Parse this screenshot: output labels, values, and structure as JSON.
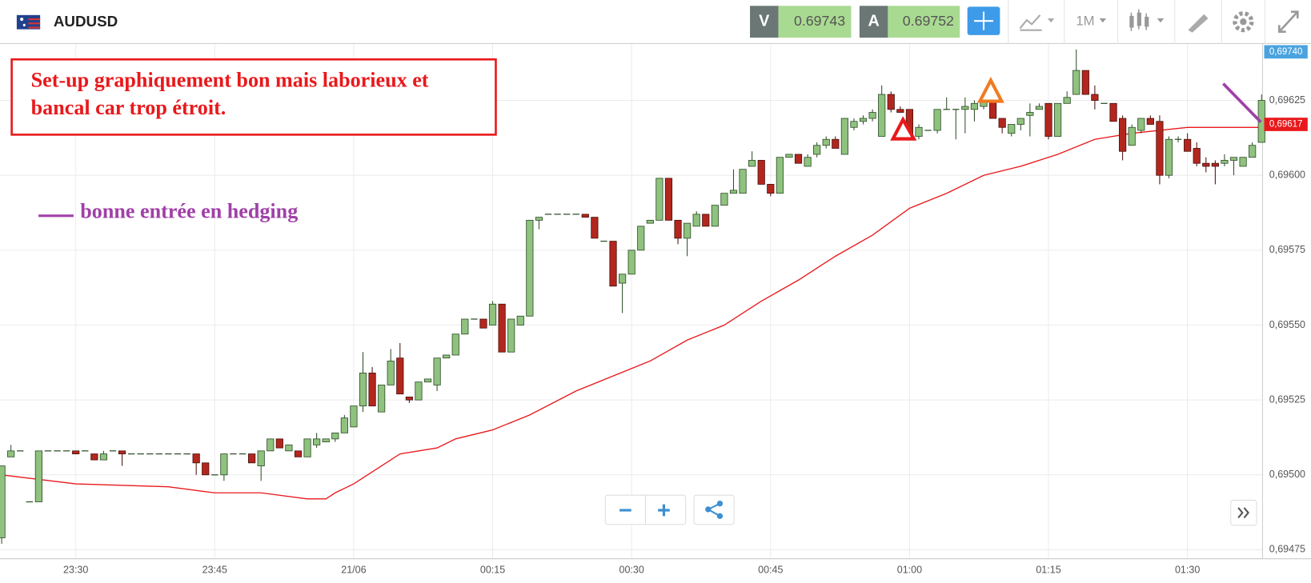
{
  "header": {
    "symbol": "AUDUSD",
    "sell_label": "V",
    "sell_price": "0.69743",
    "buy_label": "A",
    "buy_price": "0.69752",
    "timeframe": "1M"
  },
  "chart_data": {
    "type": "candlestick",
    "x": [
      "23:22",
      "23:23",
      "23:24",
      "23:25",
      "23:26",
      "23:27",
      "23:28",
      "23:29",
      "23:30",
      "23:31",
      "23:32",
      "23:33",
      "23:34",
      "23:35",
      "23:36",
      "23:37",
      "23:38",
      "23:39",
      "23:40",
      "23:41",
      "23:42",
      "23:43",
      "23:44",
      "23:45",
      "23:46",
      "23:47",
      "23:48",
      "23:49",
      "23:50",
      "23:51",
      "23:52",
      "23:53",
      "23:54",
      "23:55",
      "23:56",
      "23:57",
      "23:58",
      "23:59",
      "00:00",
      "00:01",
      "00:02",
      "00:03",
      "00:04",
      "00:05",
      "00:06",
      "00:07",
      "00:08",
      "00:09",
      "00:10",
      "00:11",
      "00:12",
      "00:13",
      "00:14",
      "00:15",
      "00:16",
      "00:17",
      "00:18",
      "00:19",
      "00:20",
      "00:21",
      "00:22",
      "00:23",
      "00:24",
      "00:25",
      "00:26",
      "00:27",
      "00:28",
      "00:29",
      "00:30",
      "00:31",
      "00:32",
      "00:33",
      "00:34",
      "00:35",
      "00:36",
      "00:37",
      "00:38",
      "00:39",
      "00:40",
      "00:41",
      "00:42",
      "00:43",
      "00:44",
      "00:45",
      "00:46",
      "00:47",
      "00:48",
      "00:49",
      "00:50",
      "00:51",
      "00:52",
      "00:53",
      "00:54",
      "00:55",
      "00:56",
      "00:57",
      "00:58",
      "00:59",
      "01:00",
      "01:01",
      "01:02",
      "01:03",
      "01:04",
      "01:05",
      "01:06",
      "01:07",
      "01:08",
      "01:09",
      "01:10",
      "01:11",
      "01:12",
      "01:13",
      "01:14",
      "01:15",
      "01:16",
      "01:17",
      "01:18",
      "01:19",
      "01:20",
      "01:21",
      "01:22",
      "01:23",
      "01:24",
      "01:25",
      "01:26",
      "01:27",
      "01:28",
      "01:29",
      "01:30",
      "01:31",
      "01:32",
      "01:33",
      "01:34",
      "01:35",
      "01:36",
      "01:37",
      "01:38"
    ],
    "open": [
      0.69479,
      0.69506,
      0.69508,
      0.69491,
      0.69491,
      0.69508,
      0.69508,
      0.69508,
      0.69508,
      0.69508,
      0.69507,
      0.69505,
      0.69508,
      0.69508,
      0.69507,
      0.69507,
      0.69507,
      0.69507,
      0.69507,
      0.69507,
      0.69507,
      0.69507,
      0.69504,
      0.695,
      0.695,
      0.69507,
      0.69507,
      0.69507,
      0.69503,
      0.69508,
      0.69512,
      0.69508,
      0.69508,
      0.69506,
      0.6951,
      0.69511,
      0.69512,
      0.69514,
      0.69516,
      0.69523,
      0.69534,
      0.69521,
      0.6953,
      0.69539,
      0.69526,
      0.69525,
      0.69531,
      0.6953,
      0.69539,
      0.6954,
      0.69547,
      0.69552,
      0.69552,
      0.6955,
      0.69557,
      0.69541,
      0.6955,
      0.69553,
      0.69585,
      0.69587,
      0.69587,
      0.69587,
      0.69587,
      0.69587,
      0.69586,
      0.69578,
      0.69578,
      0.69564,
      0.69567,
      0.69575,
      0.69584,
      0.69585,
      0.69599,
      0.69585,
      0.69579,
      0.69583,
      0.69587,
      0.69583,
      0.6959,
      0.69594,
      0.69594,
      0.69603,
      0.69605,
      0.69597,
      0.69594,
      0.69606,
      0.69607,
      0.69603,
      0.69607,
      0.6961,
      0.69612,
      0.69607,
      0.69616,
      0.69618,
      0.69619,
      0.69613,
      0.69627,
      0.69622,
      0.69622,
      0.69613,
      0.69615,
      0.69615,
      0.69622,
      0.69622,
      0.69622,
      0.69622,
      0.69623,
      0.69625,
      0.69619,
      0.69614,
      0.69617,
      0.6962,
      0.69622,
      0.69624,
      0.69613,
      0.69624,
      0.69627,
      0.69635,
      0.69627,
      0.69624,
      0.69624,
      0.69619,
      0.6961,
      0.69615,
      0.69619,
      0.69618,
      0.696,
      0.69612,
      0.69612,
      0.69609,
      0.69604,
      0.69604,
      0.69604,
      0.69605,
      0.69603,
      0.69606,
      0.69611
    ],
    "high": [
      0.69503,
      0.6951,
      0.69508,
      0.69491,
      0.69508,
      0.69508,
      0.69508,
      0.69508,
      0.69508,
      0.69508,
      0.69507,
      0.69508,
      0.69508,
      0.69508,
      0.69507,
      0.69507,
      0.69507,
      0.69507,
      0.69507,
      0.69507,
      0.69507,
      0.69507,
      0.69504,
      0.695,
      0.69507,
      0.69507,
      0.69507,
      0.69507,
      0.69508,
      0.69512,
      0.69512,
      0.6951,
      0.69508,
      0.69512,
      0.69514,
      0.69512,
      0.69514,
      0.6952,
      0.69523,
      0.69541,
      0.69536,
      0.6953,
      0.69542,
      0.69544,
      0.69526,
      0.69531,
      0.69532,
      0.69539,
      0.6954,
      0.69547,
      0.69552,
      0.69552,
      0.69552,
      0.69558,
      0.69557,
      0.69552,
      0.69553,
      0.69585,
      0.69586,
      0.69587,
      0.69587,
      0.69587,
      0.69587,
      0.69587,
      0.69586,
      0.69578,
      0.69578,
      0.69567,
      0.69575,
      0.69583,
      0.69585,
      0.69599,
      0.69599,
      0.69585,
      0.69584,
      0.69588,
      0.69587,
      0.6959,
      0.69594,
      0.69602,
      0.69602,
      0.69608,
      0.69605,
      0.69597,
      0.69606,
      0.69607,
      0.69607,
      0.69607,
      0.69611,
      0.69613,
      0.69613,
      0.69619,
      0.69619,
      0.6962,
      0.69622,
      0.6963,
      0.69628,
      0.69623,
      0.69622,
      0.69617,
      0.69615,
      0.69622,
      0.69626,
      0.69622,
      0.69626,
      0.69625,
      0.69628,
      0.69626,
      0.69619,
      0.69617,
      0.69619,
      0.69624,
      0.69624,
      0.69624,
      0.69624,
      0.69628,
      0.69642,
      0.69635,
      0.6963,
      0.69624,
      0.69624,
      0.6962,
      0.69617,
      0.69619,
      0.6962,
      0.6962,
      0.69613,
      0.69613,
      0.69614,
      0.69611,
      0.69606,
      0.69605,
      0.69607,
      0.69606,
      0.69606,
      0.69611,
      0.69627
    ],
    "low": [
      0.69477,
      0.69506,
      0.69508,
      0.69491,
      0.69491,
      0.69508,
      0.69508,
      0.69508,
      0.69507,
      0.69508,
      0.69505,
      0.69505,
      0.69508,
      0.69503,
      0.69507,
      0.69507,
      0.69507,
      0.69507,
      0.69507,
      0.69507,
      0.69507,
      0.695,
      0.695,
      0.695,
      0.69498,
      0.69507,
      0.69507,
      0.69504,
      0.69498,
      0.69508,
      0.69509,
      0.69508,
      0.69506,
      0.69506,
      0.69509,
      0.69511,
      0.69511,
      0.69514,
      0.69516,
      0.69521,
      0.69523,
      0.69521,
      0.6953,
      0.69527,
      0.69524,
      0.69525,
      0.69531,
      0.69528,
      0.69539,
      0.6954,
      0.69547,
      0.69552,
      0.69549,
      0.6955,
      0.69541,
      0.69541,
      0.6955,
      0.69553,
      0.69582,
      0.69587,
      0.69587,
      0.69587,
      0.69587,
      0.69586,
      0.69579,
      0.69578,
      0.69563,
      0.69554,
      0.69567,
      0.69575,
      0.69584,
      0.69585,
      0.69585,
      0.69577,
      0.69573,
      0.69583,
      0.69583,
      0.69583,
      0.6959,
      0.69594,
      0.69594,
      0.69603,
      0.69597,
      0.69593,
      0.69594,
      0.69606,
      0.69604,
      0.69603,
      0.69606,
      0.69609,
      0.69609,
      0.69607,
      0.69615,
      0.69617,
      0.69618,
      0.69613,
      0.69621,
      0.69621,
      0.69613,
      0.69612,
      0.69615,
      0.69614,
      0.69622,
      0.69612,
      0.69614,
      0.69618,
      0.69622,
      0.69619,
      0.69614,
      0.69613,
      0.69615,
      0.69613,
      0.69622,
      0.69612,
      0.69613,
      0.69624,
      0.69627,
      0.69627,
      0.69622,
      0.69624,
      0.69618,
      0.69605,
      0.6961,
      0.69614,
      0.69617,
      0.69597,
      0.69599,
      0.69611,
      0.69608,
      0.69603,
      0.69601,
      0.69597,
      0.69603,
      0.696,
      0.69603,
      0.69606,
      0.69611
    ],
    "close": [
      0.69503,
      0.69508,
      0.69508,
      0.69491,
      0.69508,
      0.69508,
      0.69508,
      0.69508,
      0.69507,
      0.69508,
      0.69505,
      0.69507,
      0.69508,
      0.69507,
      0.69507,
      0.69507,
      0.69507,
      0.69507,
      0.69507,
      0.69507,
      0.69507,
      0.69504,
      0.695,
      0.695,
      0.69507,
      0.69507,
      0.69507,
      0.69504,
      0.69508,
      0.69512,
      0.69509,
      0.6951,
      0.69506,
      0.69512,
      0.69512,
      0.69512,
      0.69514,
      0.69519,
      0.69523,
      0.69534,
      0.69523,
      0.6953,
      0.69538,
      0.69527,
      0.69525,
      0.69531,
      0.69532,
      0.69539,
      0.6954,
      0.69547,
      0.69552,
      0.69552,
      0.69549,
      0.69557,
      0.69541,
      0.69552,
      0.69553,
      0.69585,
      0.69586,
      0.69587,
      0.69587,
      0.69587,
      0.69587,
      0.69586,
      0.69579,
      0.69578,
      0.69563,
      0.69567,
      0.69575,
      0.69583,
      0.69585,
      0.69599,
      0.69585,
      0.69579,
      0.69584,
      0.69587,
      0.69583,
      0.6959,
      0.69594,
      0.69595,
      0.69602,
      0.69605,
      0.69597,
      0.69594,
      0.69606,
      0.69607,
      0.69604,
      0.69606,
      0.6961,
      0.69612,
      0.69609,
      0.69619,
      0.69618,
      0.69619,
      0.69621,
      0.69627,
      0.69622,
      0.69621,
      0.69613,
      0.69616,
      0.69615,
      0.69622,
      0.69622,
      0.69622,
      0.69623,
      0.69624,
      0.69625,
      0.69619,
      0.69616,
      0.69617,
      0.69619,
      0.69621,
      0.69623,
      0.69613,
      0.69624,
      0.69626,
      0.69635,
      0.69627,
      0.69625,
      0.69624,
      0.69618,
      0.69608,
      0.69616,
      0.69619,
      0.69617,
      0.696,
      0.69612,
      0.69612,
      0.69608,
      0.69604,
      0.69603,
      0.69603,
      0.69605,
      0.69606,
      0.69606,
      0.6961,
      0.69625
    ],
    "up_color": "#8fc27e",
    "down_color": "#b3261e",
    "moving_average": {
      "color": "#e8191c",
      "x": [
        "23:22",
        "23:30",
        "23:40",
        "23:45",
        "23:50",
        "23:55",
        "23:57",
        "23:58",
        "00:00",
        "00:03",
        "00:05",
        "00:09",
        "00:11",
        "00:15",
        "00:19",
        "00:24",
        "00:28",
        "00:32",
        "00:36",
        "00:40",
        "00:44",
        "00:48",
        "00:52",
        "00:56",
        "01:00",
        "01:04",
        "01:08",
        "01:12",
        "01:16",
        "01:20",
        "01:24",
        "01:30",
        "01:38"
      ],
      "values": [
        0.695,
        0.69497,
        0.69496,
        0.69494,
        0.69494,
        0.69492,
        0.69492,
        0.69494,
        0.69497,
        0.69503,
        0.69507,
        0.69509,
        0.69512,
        0.69515,
        0.6952,
        0.69528,
        0.69533,
        0.69538,
        0.69545,
        0.6955,
        0.69558,
        0.69565,
        0.69573,
        0.6958,
        0.69589,
        0.69594,
        0.696,
        0.69603,
        0.69607,
        0.69612,
        0.69614,
        0.69616,
        0.69616
      ]
    },
    "ylim": [
      0.69472,
      0.69644
    ],
    "yticks": [
      {
        "value": 0.69475,
        "label": "0,69475"
      },
      {
        "value": 0.695,
        "label": "0,69500"
      },
      {
        "value": 0.69525,
        "label": "0,69525"
      },
      {
        "value": 0.6955,
        "label": "0,69550"
      },
      {
        "value": 0.69575,
        "label": "0,69575"
      },
      {
        "value": 0.696,
        "label": "0,69600"
      },
      {
        "value": 0.69625,
        "label": "0,69625"
      }
    ],
    "xticks": [
      "23:30",
      "23:45",
      {
        "value": "00:00",
        "label": "21/06"
      },
      "00:15",
      "00:30",
      "00:45",
      "01:00",
      "01:15",
      "01:30"
    ],
    "grid": true,
    "ask_label": "0,69740",
    "price_markers": [
      {
        "value": 0.69617,
        "label": "0,69617",
        "color": "#e8191c"
      }
    ],
    "annotations": [
      "Set-up graphiquement bon mais laborieux et",
      "bancal car trop étroit.",
      "bonne entrée en hedging"
    ]
  }
}
